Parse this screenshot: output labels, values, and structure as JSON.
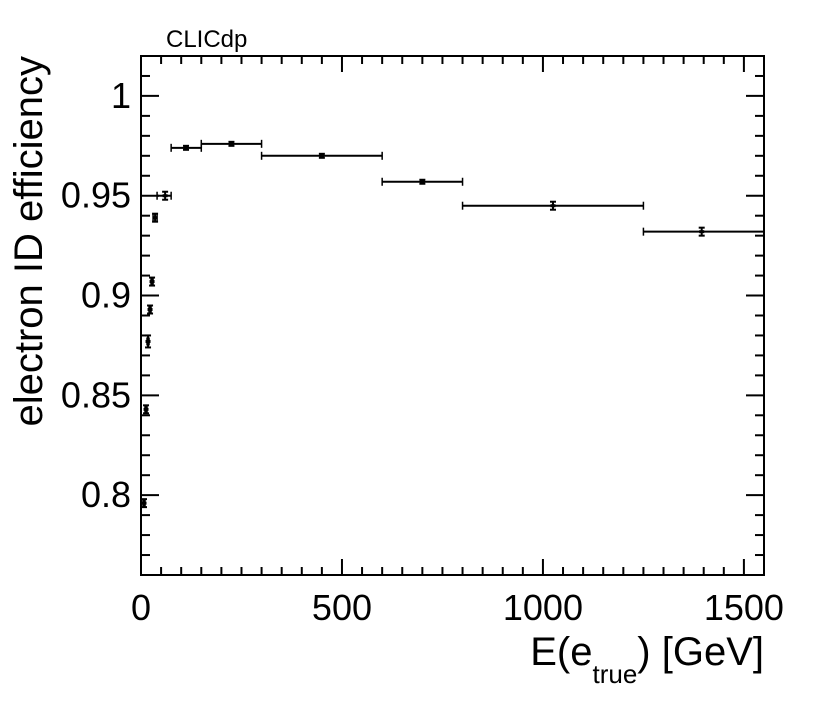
{
  "chart_data": {
    "type": "scatter",
    "top_label": "CLICdp",
    "xlabel": {
      "main": "E(e",
      "sub": "true",
      "tail": ") [GeV]"
    },
    "ylabel": "electron ID efficiency",
    "xlim": [
      0,
      1550
    ],
    "ylim": [
      0.76,
      1.02
    ],
    "x_ticks": [
      {
        "value": 0,
        "label": "0"
      },
      {
        "value": 500,
        "label": "500"
      },
      {
        "value": 1000,
        "label": "1000"
      },
      {
        "value": 1500,
        "label": "1500"
      }
    ],
    "y_ticks": [
      {
        "value": 0.8,
        "label": "0.8"
      },
      {
        "value": 0.85,
        "label": "0.85"
      },
      {
        "value": 0.9,
        "label": "0.9"
      },
      {
        "value": 0.95,
        "label": "0.95"
      },
      {
        "value": 1.0,
        "label": "1"
      }
    ],
    "grid": false,
    "legend": "none",
    "series": [
      {
        "points": [
          {
            "x": 7.5,
            "xlo": 5,
            "xhi": 10,
            "y": 0.796,
            "ylo": 0.794,
            "yhi": 0.798
          },
          {
            "x": 12.5,
            "xlo": 10,
            "xhi": 15,
            "y": 0.843,
            "ylo": 0.841,
            "yhi": 0.845
          },
          {
            "x": 17.5,
            "xlo": 15,
            "xhi": 20,
            "y": 0.877,
            "ylo": 0.874,
            "yhi": 0.88
          },
          {
            "x": 22.5,
            "xlo": 20,
            "xhi": 25,
            "y": 0.893,
            "ylo": 0.891,
            "yhi": 0.895
          },
          {
            "x": 27.5,
            "xlo": 25,
            "xhi": 30,
            "y": 0.907,
            "ylo": 0.905,
            "yhi": 0.909
          },
          {
            "x": 35,
            "xlo": 30,
            "xhi": 40,
            "y": 0.939,
            "ylo": 0.937,
            "yhi": 0.941
          },
          {
            "x": 60,
            "xlo": 40,
            "xhi": 75,
            "y": 0.95,
            "ylo": 0.948,
            "yhi": 0.952
          },
          {
            "x": 112,
            "xlo": 75,
            "xhi": 150,
            "y": 0.974,
            "ylo": 0.973,
            "yhi": 0.975
          },
          {
            "x": 225,
            "xlo": 150,
            "xhi": 300,
            "y": 0.976,
            "ylo": 0.975,
            "yhi": 0.977
          },
          {
            "x": 450,
            "xlo": 300,
            "xhi": 600,
            "y": 0.97,
            "ylo": 0.969,
            "yhi": 0.971
          },
          {
            "x": 700,
            "xlo": 600,
            "xhi": 800,
            "y": 0.957,
            "ylo": 0.956,
            "yhi": 0.958
          },
          {
            "x": 1025,
            "xlo": 800,
            "xhi": 1250,
            "y": 0.945,
            "ylo": 0.943,
            "yhi": 0.947
          },
          {
            "x": 1395,
            "xlo": 1250,
            "xhi": 1550,
            "y": 0.932,
            "ylo": 0.93,
            "yhi": 0.934
          }
        ]
      }
    ]
  }
}
